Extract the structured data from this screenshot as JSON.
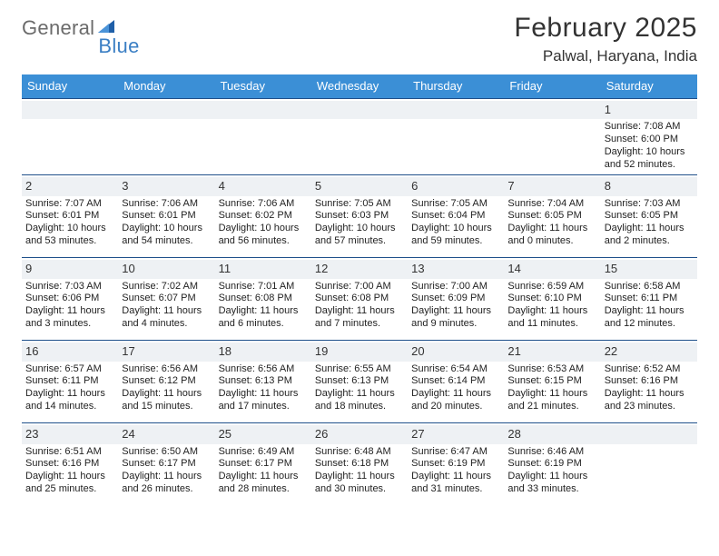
{
  "logo": {
    "text1": "General",
    "text2": "Blue"
  },
  "title": "February 2025",
  "location": "Palwal, Haryana, India",
  "colors": {
    "header_bg": "#3b8fd6",
    "header_text": "#ffffff",
    "divider": "#1e4f8a",
    "daynum_bg": "#eef1f4",
    "logo_gray": "#6b6b6b",
    "logo_blue": "#3b7fc4",
    "text": "#222222"
  },
  "weekdays": [
    "Sunday",
    "Monday",
    "Tuesday",
    "Wednesday",
    "Thursday",
    "Friday",
    "Saturday"
  ],
  "weeks": [
    [
      {
        "n": "",
        "sr": "",
        "ss": "",
        "dl": "",
        "dl2": ""
      },
      {
        "n": "",
        "sr": "",
        "ss": "",
        "dl": "",
        "dl2": ""
      },
      {
        "n": "",
        "sr": "",
        "ss": "",
        "dl": "",
        "dl2": ""
      },
      {
        "n": "",
        "sr": "",
        "ss": "",
        "dl": "",
        "dl2": ""
      },
      {
        "n": "",
        "sr": "",
        "ss": "",
        "dl": "",
        "dl2": ""
      },
      {
        "n": "",
        "sr": "",
        "ss": "",
        "dl": "",
        "dl2": ""
      },
      {
        "n": "1",
        "sr": "Sunrise: 7:08 AM",
        "ss": "Sunset: 6:00 PM",
        "dl": "Daylight: 10 hours",
        "dl2": "and 52 minutes."
      }
    ],
    [
      {
        "n": "2",
        "sr": "Sunrise: 7:07 AM",
        "ss": "Sunset: 6:01 PM",
        "dl": "Daylight: 10 hours",
        "dl2": "and 53 minutes."
      },
      {
        "n": "3",
        "sr": "Sunrise: 7:06 AM",
        "ss": "Sunset: 6:01 PM",
        "dl": "Daylight: 10 hours",
        "dl2": "and 54 minutes."
      },
      {
        "n": "4",
        "sr": "Sunrise: 7:06 AM",
        "ss": "Sunset: 6:02 PM",
        "dl": "Daylight: 10 hours",
        "dl2": "and 56 minutes."
      },
      {
        "n": "5",
        "sr": "Sunrise: 7:05 AM",
        "ss": "Sunset: 6:03 PM",
        "dl": "Daylight: 10 hours",
        "dl2": "and 57 minutes."
      },
      {
        "n": "6",
        "sr": "Sunrise: 7:05 AM",
        "ss": "Sunset: 6:04 PM",
        "dl": "Daylight: 10 hours",
        "dl2": "and 59 minutes."
      },
      {
        "n": "7",
        "sr": "Sunrise: 7:04 AM",
        "ss": "Sunset: 6:05 PM",
        "dl": "Daylight: 11 hours",
        "dl2": "and 0 minutes."
      },
      {
        "n": "8",
        "sr": "Sunrise: 7:03 AM",
        "ss": "Sunset: 6:05 PM",
        "dl": "Daylight: 11 hours",
        "dl2": "and 2 minutes."
      }
    ],
    [
      {
        "n": "9",
        "sr": "Sunrise: 7:03 AM",
        "ss": "Sunset: 6:06 PM",
        "dl": "Daylight: 11 hours",
        "dl2": "and 3 minutes."
      },
      {
        "n": "10",
        "sr": "Sunrise: 7:02 AM",
        "ss": "Sunset: 6:07 PM",
        "dl": "Daylight: 11 hours",
        "dl2": "and 4 minutes."
      },
      {
        "n": "11",
        "sr": "Sunrise: 7:01 AM",
        "ss": "Sunset: 6:08 PM",
        "dl": "Daylight: 11 hours",
        "dl2": "and 6 minutes."
      },
      {
        "n": "12",
        "sr": "Sunrise: 7:00 AM",
        "ss": "Sunset: 6:08 PM",
        "dl": "Daylight: 11 hours",
        "dl2": "and 7 minutes."
      },
      {
        "n": "13",
        "sr": "Sunrise: 7:00 AM",
        "ss": "Sunset: 6:09 PM",
        "dl": "Daylight: 11 hours",
        "dl2": "and 9 minutes."
      },
      {
        "n": "14",
        "sr": "Sunrise: 6:59 AM",
        "ss": "Sunset: 6:10 PM",
        "dl": "Daylight: 11 hours",
        "dl2": "and 11 minutes."
      },
      {
        "n": "15",
        "sr": "Sunrise: 6:58 AM",
        "ss": "Sunset: 6:11 PM",
        "dl": "Daylight: 11 hours",
        "dl2": "and 12 minutes."
      }
    ],
    [
      {
        "n": "16",
        "sr": "Sunrise: 6:57 AM",
        "ss": "Sunset: 6:11 PM",
        "dl": "Daylight: 11 hours",
        "dl2": "and 14 minutes."
      },
      {
        "n": "17",
        "sr": "Sunrise: 6:56 AM",
        "ss": "Sunset: 6:12 PM",
        "dl": "Daylight: 11 hours",
        "dl2": "and 15 minutes."
      },
      {
        "n": "18",
        "sr": "Sunrise: 6:56 AM",
        "ss": "Sunset: 6:13 PM",
        "dl": "Daylight: 11 hours",
        "dl2": "and 17 minutes."
      },
      {
        "n": "19",
        "sr": "Sunrise: 6:55 AM",
        "ss": "Sunset: 6:13 PM",
        "dl": "Daylight: 11 hours",
        "dl2": "and 18 minutes."
      },
      {
        "n": "20",
        "sr": "Sunrise: 6:54 AM",
        "ss": "Sunset: 6:14 PM",
        "dl": "Daylight: 11 hours",
        "dl2": "and 20 minutes."
      },
      {
        "n": "21",
        "sr": "Sunrise: 6:53 AM",
        "ss": "Sunset: 6:15 PM",
        "dl": "Daylight: 11 hours",
        "dl2": "and 21 minutes."
      },
      {
        "n": "22",
        "sr": "Sunrise: 6:52 AM",
        "ss": "Sunset: 6:16 PM",
        "dl": "Daylight: 11 hours",
        "dl2": "and 23 minutes."
      }
    ],
    [
      {
        "n": "23",
        "sr": "Sunrise: 6:51 AM",
        "ss": "Sunset: 6:16 PM",
        "dl": "Daylight: 11 hours",
        "dl2": "and 25 minutes."
      },
      {
        "n": "24",
        "sr": "Sunrise: 6:50 AM",
        "ss": "Sunset: 6:17 PM",
        "dl": "Daylight: 11 hours",
        "dl2": "and 26 minutes."
      },
      {
        "n": "25",
        "sr": "Sunrise: 6:49 AM",
        "ss": "Sunset: 6:17 PM",
        "dl": "Daylight: 11 hours",
        "dl2": "and 28 minutes."
      },
      {
        "n": "26",
        "sr": "Sunrise: 6:48 AM",
        "ss": "Sunset: 6:18 PM",
        "dl": "Daylight: 11 hours",
        "dl2": "and 30 minutes."
      },
      {
        "n": "27",
        "sr": "Sunrise: 6:47 AM",
        "ss": "Sunset: 6:19 PM",
        "dl": "Daylight: 11 hours",
        "dl2": "and 31 minutes."
      },
      {
        "n": "28",
        "sr": "Sunrise: 6:46 AM",
        "ss": "Sunset: 6:19 PM",
        "dl": "Daylight: 11 hours",
        "dl2": "and 33 minutes."
      },
      {
        "n": "",
        "sr": "",
        "ss": "",
        "dl": "",
        "dl2": ""
      }
    ]
  ]
}
